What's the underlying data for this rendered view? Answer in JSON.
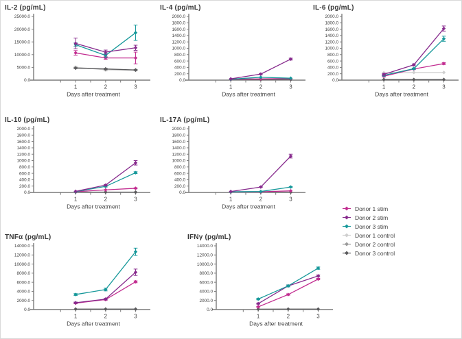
{
  "figure": {
    "description": "Cytokine concentration panels over days after treatment"
  },
  "legend": {
    "entries": [
      {
        "key": "donor1_stim",
        "label": "Donor 1 stim",
        "color": "#c22c90"
      },
      {
        "key": "donor2_stim",
        "label": "Donor 2 stim",
        "color": "#872b8d"
      },
      {
        "key": "donor3_stim",
        "label": "Donor 3 stim",
        "color": "#16989a"
      },
      {
        "key": "donor1_control",
        "label": "Donor 1 control",
        "color": "#cfcfcf"
      },
      {
        "key": "donor2_control",
        "label": "Donor 2 control",
        "color": "#9a9a9a"
      },
      {
        "key": "donor3_control",
        "label": "Donor 3 control",
        "color": "#5a5a5c"
      }
    ]
  },
  "style_colors": {
    "axis": "#7a7a7a",
    "text": "#3f3f3f"
  },
  "chart_data": [
    {
      "type": "line",
      "title": "IL-2 (pg/mL)",
      "xlabel": "Days after treatment",
      "x": [
        1,
        2,
        3
      ],
      "x_ticklabels": [
        "1",
        "2",
        "3"
      ],
      "ylim": [
        0,
        25000
      ],
      "ystep": 5000,
      "series": [
        {
          "name": "Donor 1 control",
          "color_key": "donor1_control",
          "values": [
            5100,
            4000,
            3900
          ],
          "errors": [
            400,
            400,
            200
          ]
        },
        {
          "name": "Donor 2 control",
          "color_key": "donor2_control",
          "values": [
            4800,
            4300,
            3900
          ],
          "errors": [
            200,
            300,
            150
          ]
        },
        {
          "name": "Donor 3 control",
          "color_key": "donor3_control",
          "values": [
            4700,
            4400,
            4000
          ],
          "errors": [
            150,
            200,
            150
          ]
        },
        {
          "name": "Donor 1 stim",
          "color_key": "donor1_stim",
          "values": [
            10700,
            8700,
            8700
          ],
          "errors": [
            900,
            500,
            2300
          ]
        },
        {
          "name": "Donor 3 stim",
          "color_key": "donor3_stim",
          "values": [
            13900,
            9700,
            18600
          ],
          "errors": [
            700,
            700,
            3000
          ]
        },
        {
          "name": "Donor 2 stim",
          "color_key": "donor2_stim",
          "values": [
            14400,
            11000,
            12700
          ],
          "errors": [
            2100,
            800,
            1000
          ]
        }
      ]
    },
    {
      "type": "line",
      "title": "IL-4 (pg/mL)",
      "xlabel": "Days after treatment",
      "x": [
        1,
        2,
        3
      ],
      "x_ticklabels": [
        "1",
        "2",
        "3"
      ],
      "ylim": [
        0,
        2000
      ],
      "ystep": 200,
      "series": [
        {
          "name": "Donor 1 control",
          "color_key": "donor1_control",
          "values": [
            10,
            10,
            10
          ],
          "errors": [
            0,
            0,
            0
          ]
        },
        {
          "name": "Donor 2 control",
          "color_key": "donor2_control",
          "values": [
            15,
            15,
            15
          ],
          "errors": [
            0,
            0,
            0
          ]
        },
        {
          "name": "Donor 3 control",
          "color_key": "donor3_control",
          "values": [
            20,
            20,
            20
          ],
          "errors": [
            0,
            0,
            0
          ]
        },
        {
          "name": "Donor 1 stim",
          "color_key": "donor1_stim",
          "values": [
            30,
            40,
            50
          ],
          "errors": [
            0,
            0,
            0
          ]
        },
        {
          "name": "Donor 3 stim",
          "color_key": "donor3_stim",
          "values": [
            30,
            90,
            60
          ],
          "errors": [
            0,
            0,
            0
          ]
        },
        {
          "name": "Donor 2 stim",
          "color_key": "donor2_stim",
          "values": [
            40,
            190,
            660
          ],
          "errors": [
            0,
            20,
            30
          ]
        }
      ]
    },
    {
      "type": "line",
      "title": "IL-6 (pg/mL)",
      "xlabel": "Days after treatment",
      "x": [
        1,
        2,
        3
      ],
      "x_ticklabels": [
        "1",
        "2",
        "3"
      ],
      "ylim": [
        0,
        2000
      ],
      "ystep": 200,
      "series": [
        {
          "name": "Donor 2 control",
          "color_key": "donor2_control",
          "values": [
            10,
            10,
            10
          ],
          "errors": [
            0,
            0,
            0
          ]
        },
        {
          "name": "Donor 3 control",
          "color_key": "donor3_control",
          "values": [
            20,
            20,
            20
          ],
          "errors": [
            0,
            0,
            0
          ]
        },
        {
          "name": "Donor 1 control",
          "color_key": "donor1_control",
          "values": [
            230,
            240,
            240
          ],
          "errors": [
            0,
            0,
            0
          ]
        },
        {
          "name": "Donor 1 stim",
          "color_key": "donor1_stim",
          "values": [
            120,
            350,
            520
          ],
          "errors": [
            20,
            20,
            30
          ]
        },
        {
          "name": "Donor 3 stim",
          "color_key": "donor3_stim",
          "values": [
            150,
            360,
            1300
          ],
          "errors": [
            20,
            20,
            80
          ]
        },
        {
          "name": "Donor 2 stim",
          "color_key": "donor2_stim",
          "values": [
            180,
            480,
            1620
          ],
          "errors": [
            30,
            30,
            80
          ]
        }
      ]
    },
    {
      "type": "line",
      "title": "IL-10 (pg/mL)",
      "xlabel": "Days after treatment",
      "x": [
        1,
        2,
        3
      ],
      "x_ticklabels": [
        "1",
        "2",
        "3"
      ],
      "ylim": [
        0,
        2000
      ],
      "ystep": 200,
      "series": [
        {
          "name": "Donor 1 control",
          "color_key": "donor1_control",
          "values": [
            5,
            5,
            5
          ],
          "errors": [
            0,
            0,
            0
          ]
        },
        {
          "name": "Donor 2 control",
          "color_key": "donor2_control",
          "values": [
            8,
            8,
            8
          ],
          "errors": [
            0,
            0,
            0
          ]
        },
        {
          "name": "Donor 3 control",
          "color_key": "donor3_control",
          "values": [
            10,
            10,
            10
          ],
          "errors": [
            0,
            0,
            0
          ]
        },
        {
          "name": "Donor 1 stim",
          "color_key": "donor1_stim",
          "values": [
            25,
            80,
            130
          ],
          "errors": [
            0,
            0,
            15
          ]
        },
        {
          "name": "Donor 3 stim",
          "color_key": "donor3_stim",
          "values": [
            25,
            190,
            620
          ],
          "errors": [
            0,
            20,
            30
          ]
        },
        {
          "name": "Donor 2 stim",
          "color_key": "donor2_stim",
          "values": [
            35,
            230,
            930
          ],
          "errors": [
            0,
            20,
            70
          ]
        }
      ]
    },
    {
      "type": "line",
      "title": "IL-17A (pg/mL)",
      "xlabel": "Days after treatment",
      "x": [
        1,
        2,
        3
      ],
      "x_ticklabels": [
        "1",
        "2",
        "3"
      ],
      "ylim": [
        0,
        2000
      ],
      "ystep": 200,
      "series": [
        {
          "name": "Donor 1 control",
          "color_key": "donor1_control",
          "values": [
            5,
            5,
            5
          ],
          "errors": [
            0,
            0,
            0
          ]
        },
        {
          "name": "Donor 2 control",
          "color_key": "donor2_control",
          "values": [
            8,
            8,
            8
          ],
          "errors": [
            0,
            0,
            0
          ]
        },
        {
          "name": "Donor 3 control",
          "color_key": "donor3_control",
          "values": [
            10,
            10,
            10
          ],
          "errors": [
            0,
            0,
            0
          ]
        },
        {
          "name": "Donor 1 stim",
          "color_key": "donor1_stim",
          "values": [
            20,
            20,
            50
          ],
          "errors": [
            0,
            0,
            0
          ]
        },
        {
          "name": "Donor 3 stim",
          "color_key": "donor3_stim",
          "values": [
            20,
            30,
            170
          ],
          "errors": [
            0,
            0,
            15
          ]
        },
        {
          "name": "Donor 2 stim",
          "color_key": "donor2_stim",
          "values": [
            30,
            170,
            1140
          ],
          "errors": [
            0,
            10,
            60
          ]
        }
      ]
    },
    {
      "type": "line",
      "title": "TNFα (pg/mL)",
      "xlabel": "Days after treatment",
      "x": [
        1,
        2,
        3
      ],
      "x_ticklabels": [
        "1",
        "2",
        "3"
      ],
      "ylim": [
        0,
        14000
      ],
      "ystep": 2000,
      "series": [
        {
          "name": "Donor 1 control",
          "color_key": "donor1_control",
          "values": [
            60,
            60,
            60
          ],
          "errors": [
            0,
            0,
            0
          ]
        },
        {
          "name": "Donor 2 control",
          "color_key": "donor2_control",
          "values": [
            80,
            80,
            80
          ],
          "errors": [
            0,
            0,
            0
          ]
        },
        {
          "name": "Donor 3 control",
          "color_key": "donor3_control",
          "values": [
            100,
            100,
            100
          ],
          "errors": [
            0,
            0,
            0
          ]
        },
        {
          "name": "Donor 1 stim",
          "color_key": "donor1_stim",
          "values": [
            1400,
            2200,
            6100
          ],
          "errors": [
            100,
            150,
            200
          ]
        },
        {
          "name": "Donor 2 stim",
          "color_key": "donor2_stim",
          "values": [
            1500,
            2300,
            8200
          ],
          "errors": [
            150,
            150,
            700
          ]
        },
        {
          "name": "Donor 3 stim",
          "color_key": "donor3_stim",
          "values": [
            3300,
            4400,
            12700
          ],
          "errors": [
            200,
            300,
            800
          ]
        }
      ]
    },
    {
      "type": "line",
      "title": "IFNγ (pg/mL)",
      "xlabel": "Days after treatment",
      "x": [
        1,
        2,
        3
      ],
      "x_ticklabels": [
        "1",
        "2",
        "3"
      ],
      "ylim": [
        0,
        14000
      ],
      "ystep": 2000,
      "series": [
        {
          "name": "Donor 1 control",
          "color_key": "donor1_control",
          "values": [
            50,
            60,
            60
          ],
          "errors": [
            0,
            0,
            0
          ]
        },
        {
          "name": "Donor 2 control",
          "color_key": "donor2_control",
          "values": [
            70,
            80,
            80
          ],
          "errors": [
            0,
            0,
            0
          ]
        },
        {
          "name": "Donor 3 control",
          "color_key": "donor3_control",
          "values": [
            90,
            100,
            100
          ],
          "errors": [
            0,
            0,
            0
          ]
        },
        {
          "name": "Donor 1 stim",
          "color_key": "donor1_stim",
          "values": [
            600,
            3300,
            6700
          ],
          "errors": [
            100,
            150,
            150
          ]
        },
        {
          "name": "Donor 2 stim",
          "color_key": "donor2_stim",
          "values": [
            1300,
            5200,
            7400
          ],
          "errors": [
            100,
            200,
            200
          ]
        },
        {
          "name": "Donor 3 stim",
          "color_key": "donor3_stim",
          "values": [
            2300,
            5200,
            9100
          ],
          "errors": [
            150,
            200,
            250
          ]
        }
      ]
    }
  ]
}
